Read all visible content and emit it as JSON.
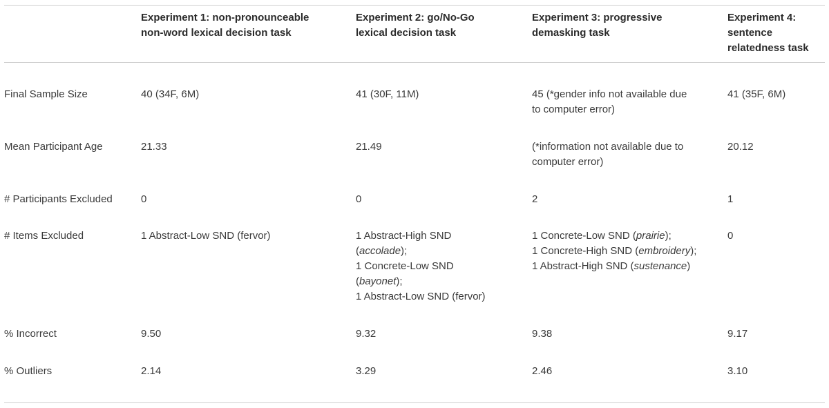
{
  "table": {
    "headers": [
      "",
      "Experiment 1: non-pronounceable non-word lexical decision task",
      "Experiment 2: go/No-Go lexical decision task",
      "Experiment 3: progressive demasking task",
      "Experiment 4: sentence relatedness task"
    ],
    "header_lines": {
      "exp1": [
        "Experiment 1: non-pronounceable",
        "non-word lexical decision task"
      ],
      "exp2": [
        "Experiment 2: go/No-Go",
        "lexical decision task"
      ],
      "exp3": [
        "Experiment 3: progressive",
        "demasking task"
      ],
      "exp4": [
        "Experiment 4:",
        "sentence",
        "relatedness task"
      ]
    },
    "rows": {
      "final_sample_size": {
        "label": "Final Sample Size",
        "exp1": "40 (34F, 6M)",
        "exp2": "41 (30F, 11M)",
        "exp3_lines": [
          "45 (*gender info not available due",
          "to computer error)"
        ],
        "exp4": "41 (35F, 6M)"
      },
      "mean_age": {
        "label": "Mean Participant Age",
        "exp1": "21.33",
        "exp2": "21.49",
        "exp3_lines": [
          "(*information not available due to",
          "computer error)"
        ],
        "exp4": "20.12"
      },
      "participants_excluded": {
        "label": "# Participants Excluded",
        "exp1": "0",
        "exp2": "0",
        "exp3": "2",
        "exp4": "1"
      },
      "items_excluded": {
        "label": "# Items Excluded",
        "exp1": "1 Abstract-Low SND (fervor)",
        "exp2": {
          "l1": "1 Abstract-High SND",
          "l2_open": "(",
          "l2_it": "accolade",
          "l2_close": ");",
          "l3": "1 Concrete-Low SND",
          "l4_open": "(",
          "l4_it": "bayonet",
          "l4_close": ");",
          "l5": "1 Abstract-Low SND (fervor)"
        },
        "exp3": {
          "l1_pre": "1 Concrete-Low SND (",
          "l1_it": "prairie",
          "l1_post": ");",
          "l2_pre": "1 Concrete-High SND (",
          "l2_it": "embroidery",
          "l2_post": ");",
          "l3_pre": "1 Abstract-High SND (",
          "l3_it": "sustenance",
          "l3_post": ")"
        },
        "exp4": "0"
      },
      "pct_incorrect": {
        "label": "% Incorrect",
        "exp1": "9.50",
        "exp2": "9.32",
        "exp3": "9.38",
        "exp4": "9.17"
      },
      "pct_outliers": {
        "label": "% Outliers",
        "exp1": "2.14",
        "exp2": "3.29",
        "exp3": "2.46",
        "exp4": "3.10"
      }
    }
  }
}
